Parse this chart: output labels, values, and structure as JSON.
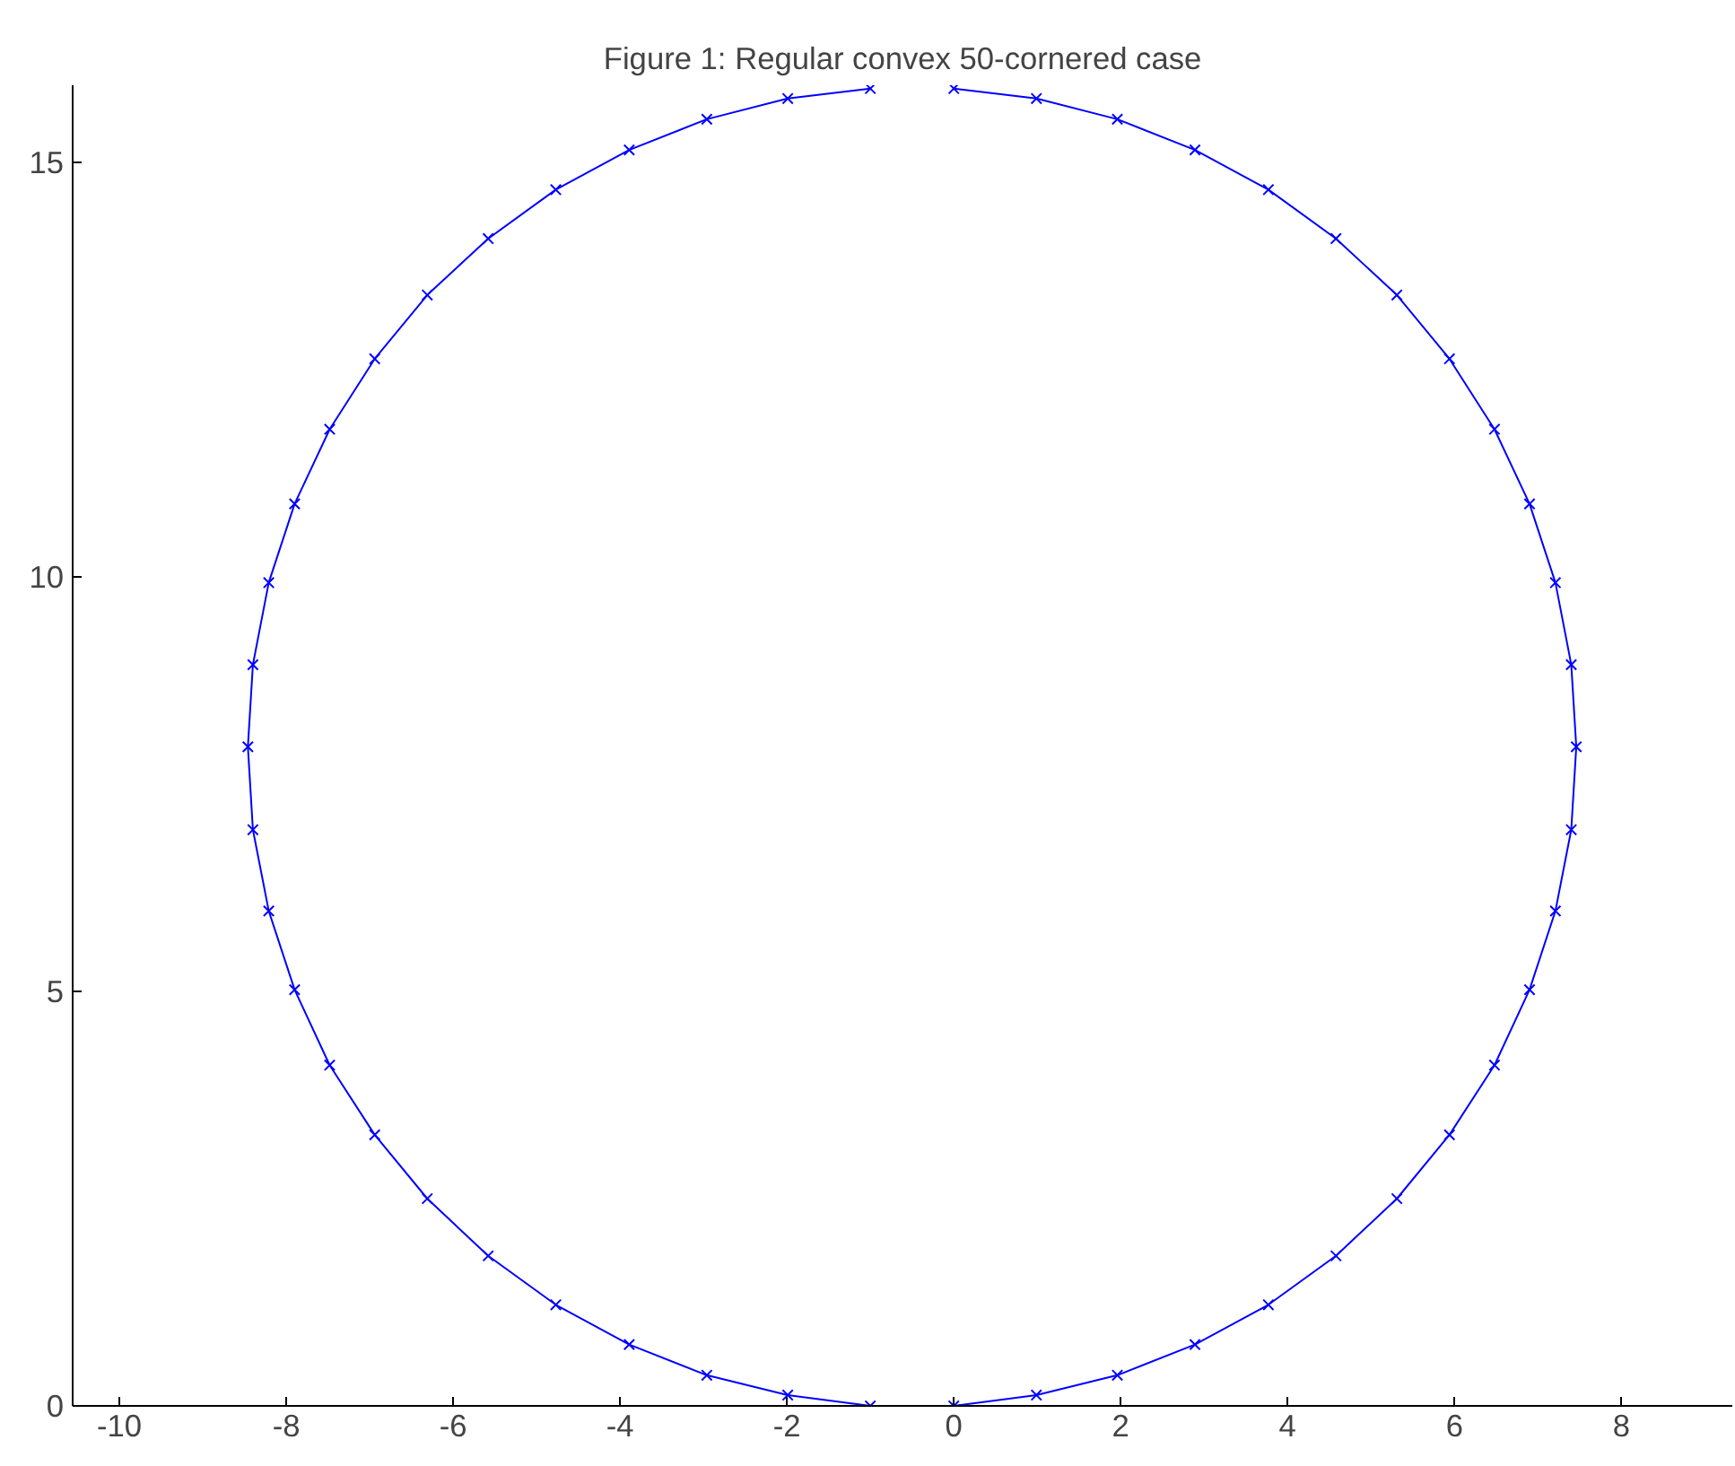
{
  "chart_data": {
    "type": "line",
    "title": "Figure 1: Regular convex 50-cornered case",
    "series": [
      {
        "color": "#0000ff",
        "x": [
          0.0,
          0.99,
          1.96,
          2.89,
          3.77,
          4.58,
          5.31,
          5.94,
          6.48,
          6.9,
          7.21,
          7.4,
          7.46,
          7.4,
          7.21,
          6.9,
          6.48,
          5.94,
          5.31,
          4.58,
          3.77,
          2.89,
          1.96,
          0.99,
          0.0
        ],
        "values": [
          0.0,
          0.13,
          0.37,
          0.74,
          1.22,
          1.81,
          2.5,
          3.27,
          4.11,
          5.02,
          5.97,
          6.95,
          7.95,
          8.94,
          9.93,
          10.88,
          11.78,
          12.63,
          13.4,
          14.08,
          14.67,
          15.15,
          15.52,
          15.77,
          15.89
        ]
      },
      {
        "color": "#0000ff",
        "x": [
          -1.0,
          -1.99,
          -2.96,
          -3.89,
          -4.77,
          -5.58,
          -6.31,
          -6.94,
          -7.48,
          -7.9,
          -8.21,
          -8.4,
          -8.46,
          -8.4,
          -8.21,
          -7.9,
          -7.48,
          -6.94,
          -6.31,
          -5.58,
          -4.77,
          -3.89,
          -2.96,
          -1.99,
          -1.0
        ],
        "values": [
          15.89,
          15.77,
          15.52,
          15.15,
          14.67,
          14.08,
          13.4,
          12.63,
          11.78,
          10.88,
          9.93,
          8.94,
          7.95,
          6.95,
          5.97,
          5.02,
          4.11,
          3.27,
          2.5,
          1.81,
          1.22,
          0.74,
          0.37,
          0.13,
          0.0
        ]
      }
    ],
    "xlim": [
      -10.56,
      9.33
    ],
    "ylim": [
      0,
      15.93
    ],
    "xticks": [
      -10,
      -8,
      -6,
      -4,
      -2,
      0,
      2,
      4,
      6,
      8
    ],
    "yticks": [
      0,
      5,
      10,
      15
    ],
    "marker": "cross",
    "line_style": "solid",
    "grid": false
  }
}
